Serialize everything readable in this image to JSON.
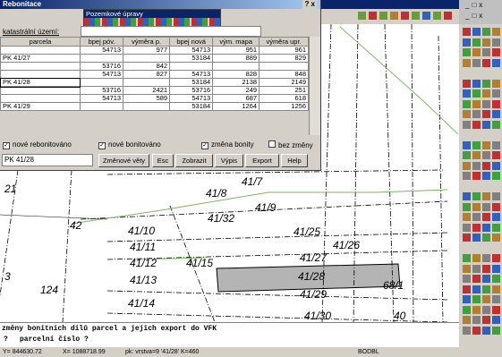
{
  "dialog": {
    "title": "Rebonitace",
    "toolbar_title": "Pozemkové úpravy",
    "cadastre_label": "katastrální území:",
    "columns": [
      "parcela",
      "bpej póv.",
      "výměra p.",
      "bpej nová",
      "vým. mapa",
      "výměra upr."
    ],
    "rows": [
      [
        null,
        54713,
        977,
        54713,
        951,
        961
      ],
      [
        "PK 41/27",
        null,
        null,
        53184,
        889,
        829
      ],
      [
        null,
        53716,
        842,
        null,
        null,
        null
      ],
      [
        null,
        54713,
        827,
        54713,
        828,
        848
      ],
      [
        "PK 41/28",
        null,
        null,
        53184,
        2138,
        2149
      ],
      [
        null,
        53716,
        2421,
        53716,
        249,
        251
      ],
      [
        null,
        54713,
        589,
        54713,
        687,
        618
      ],
      [
        "PK 41/29",
        null,
        null,
        53184,
        1264,
        1256
      ]
    ],
    "checkboxes": [
      "nové rebonitováno",
      "nové bonitováno",
      "změna bonity",
      "bez změny"
    ],
    "selected_parcel": "PK 41/28",
    "buttons": [
      "Změnové věty",
      "Esc",
      "Zobrazit",
      "Výpis",
      "Export",
      "Help"
    ]
  },
  "map": {
    "labels": [
      "21",
      "41/7",
      "41/8",
      "41/9",
      "41/32",
      "41/10",
      "41/25",
      "42",
      "41/11",
      "41/26",
      "41/12",
      "41/15",
      "41/27",
      "41/13",
      "41/28",
      "41/14",
      "41/29",
      "41/30",
      "124",
      "3",
      "40",
      "68/1"
    ]
  },
  "command": {
    "lines": [
      "změny bonitních dílů parcel a jejich export do VFK",
      "parcelní číslo ?"
    ],
    "prompt": "?"
  },
  "status": [
    "Y= 844630.72",
    "X= 1088718.99",
    "pk: vrstva=9 '41/28' K=460",
    "BODBL"
  ]
}
